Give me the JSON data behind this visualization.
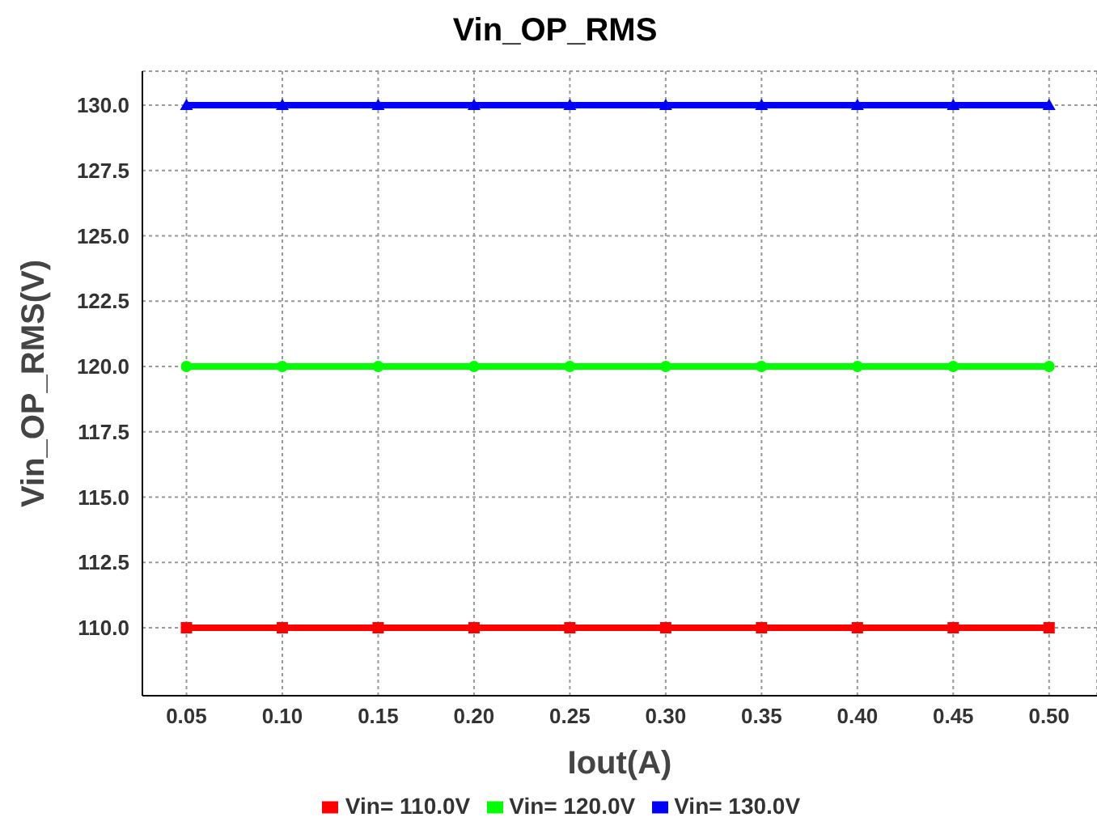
{
  "chart_data": {
    "type": "line",
    "title": "Vin_OP_RMS",
    "xlabel": "Iout(A)",
    "ylabel": "Vin_OP_RMS(V)",
    "x": [
      0.05,
      0.1,
      0.15,
      0.2,
      0.25,
      0.3,
      0.35,
      0.4,
      0.45,
      0.5
    ],
    "series": [
      {
        "name": "Vin= 110.0V",
        "color": "#ff0000",
        "marker": "square",
        "values": [
          110,
          110,
          110,
          110,
          110,
          110,
          110,
          110,
          110,
          110
        ]
      },
      {
        "name": "Vin= 120.0V",
        "color": "#00ff00",
        "marker": "circle",
        "values": [
          120,
          120,
          120,
          120,
          120,
          120,
          120,
          120,
          120,
          120
        ]
      },
      {
        "name": "Vin= 130.0V",
        "color": "#0000ff",
        "marker": "triangle",
        "values": [
          130,
          130,
          130,
          130,
          130,
          130,
          130,
          130,
          130,
          130
        ]
      }
    ],
    "xlim": [
      0.027,
      0.525
    ],
    "xticks": [
      {
        "value": 0.05,
        "label": "0.05"
      },
      {
        "value": 0.1,
        "label": "0.10"
      },
      {
        "value": 0.15,
        "label": "0.15"
      },
      {
        "value": 0.2,
        "label": "0.20"
      },
      {
        "value": 0.25,
        "label": "0.25"
      },
      {
        "value": 0.3,
        "label": "0.30"
      },
      {
        "value": 0.35,
        "label": "0.35"
      },
      {
        "value": 0.4,
        "label": "0.40"
      },
      {
        "value": 0.45,
        "label": "0.45"
      },
      {
        "value": 0.5,
        "label": "0.50"
      }
    ],
    "ylim": [
      107.4,
      131.3
    ],
    "yticks": [
      {
        "value": 110,
        "label": "110.0"
      },
      {
        "value": 112.5,
        "label": "112.5"
      },
      {
        "value": 115,
        "label": "115.0"
      },
      {
        "value": 117.5,
        "label": "117.5"
      },
      {
        "value": 120,
        "label": "120.0"
      },
      {
        "value": 122.5,
        "label": "122.5"
      },
      {
        "value": 125,
        "label": "125.0"
      },
      {
        "value": 127.5,
        "label": "127.5"
      },
      {
        "value": 130,
        "label": "130.0"
      }
    ],
    "grid": true,
    "legend": "bottom",
    "line_style": "solid"
  }
}
